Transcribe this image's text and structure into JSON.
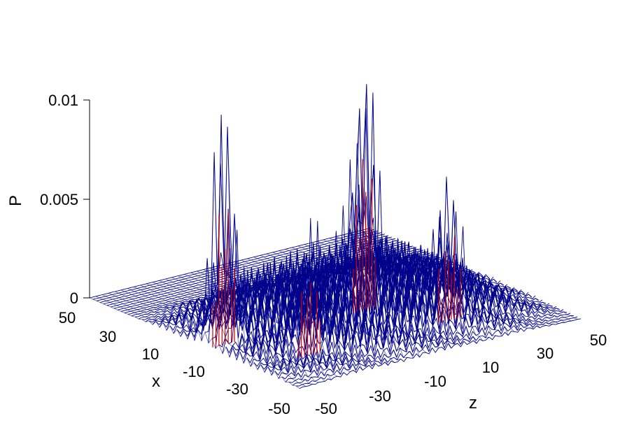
{
  "chart_data": {
    "type": "surface-mesh",
    "title": "",
    "xlabel": "x",
    "ylabel": "z",
    "zlabel": "P",
    "x_ticks": [
      "50",
      "30",
      "10",
      "-10",
      "-30",
      "-50"
    ],
    "y_ticks": [
      "-50",
      "-30",
      "-10",
      "10",
      "30",
      "50"
    ],
    "z_ticks": [
      "0.01",
      "0.005",
      "0"
    ],
    "xlim": [
      -50,
      50
    ],
    "ylim": [
      -50,
      50
    ],
    "zlim": [
      0,
      0.01
    ],
    "mesh_color": "#00008b",
    "peak_color": "#cc0000",
    "grid": false,
    "peaks": [
      {
        "x": -6,
        "z": -44,
        "P": 0.0102
      },
      {
        "x": -6,
        "z": 6,
        "P": 0.0103
      },
      {
        "x": -28,
        "z": -30,
        "P": 0.0047
      },
      {
        "x": -28,
        "z": 20,
        "P": 0.0046
      }
    ],
    "plateau_level": 0.0035
  }
}
